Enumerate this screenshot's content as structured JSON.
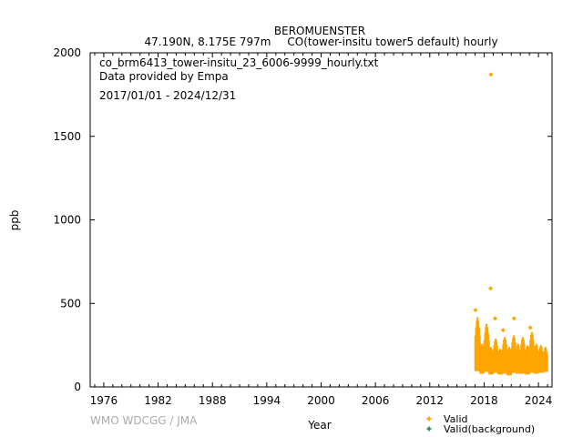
{
  "header": {
    "station": "BEROMUENSTER",
    "location": "47.190N, 8.175E 797m",
    "parameter": "CO(tower-insitu tower5 default) hourly"
  },
  "annotations": {
    "filename": "co_brm6413_tower-insitu_23_6006-9999_hourly.txt",
    "provider": "Data provided by Empa",
    "period": "2017/01/01 - 2024/12/31"
  },
  "watermark": "WMO WDCGG / JMA",
  "chart_data": {
    "type": "scatter",
    "title": "BEROMUENSTER",
    "xlabel": "Year",
    "ylabel": "ppb",
    "xlim": [
      1974.5,
      2025.5
    ],
    "ylim": [
      0,
      2000
    ],
    "x_ticks": [
      1976,
      1982,
      1988,
      1994,
      2000,
      2006,
      2012,
      2018,
      2024
    ],
    "y_ticks": [
      0,
      500,
      1000,
      1500,
      2000
    ],
    "grid": false,
    "legend_position": "bottom-right",
    "colors": {
      "valid": "#ffa500",
      "valid_background": "#2e8b57"
    },
    "series": [
      {
        "name": "Valid",
        "color": "#ffa500",
        "seasonal_bands": [
          {
            "x_start": 2017.0,
            "x_end": 2017.55,
            "y_low": 95,
            "y_high": 420
          },
          {
            "x_start": 2017.55,
            "x_end": 2018.0,
            "y_low": 80,
            "y_high": 260
          },
          {
            "x_start": 2018.0,
            "x_end": 2018.55,
            "y_low": 90,
            "y_high": 380
          },
          {
            "x_start": 2018.55,
            "x_end": 2019.0,
            "y_low": 75,
            "y_high": 240
          },
          {
            "x_start": 2019.0,
            "x_end": 2019.55,
            "y_low": 85,
            "y_high": 290
          },
          {
            "x_start": 2019.55,
            "x_end": 2020.0,
            "y_low": 75,
            "y_high": 230
          },
          {
            "x_start": 2020.0,
            "x_end": 2020.55,
            "y_low": 80,
            "y_high": 300
          },
          {
            "x_start": 2020.55,
            "x_end": 2021.0,
            "y_low": 70,
            "y_high": 240
          },
          {
            "x_start": 2021.0,
            "x_end": 2021.55,
            "y_low": 85,
            "y_high": 310
          },
          {
            "x_start": 2021.55,
            "x_end": 2022.0,
            "y_low": 80,
            "y_high": 260
          },
          {
            "x_start": 2022.0,
            "x_end": 2022.55,
            "y_low": 80,
            "y_high": 300
          },
          {
            "x_start": 2022.55,
            "x_end": 2023.0,
            "y_low": 75,
            "y_high": 250
          },
          {
            "x_start": 2023.0,
            "x_end": 2023.55,
            "y_low": 85,
            "y_high": 330
          },
          {
            "x_start": 2023.55,
            "x_end": 2024.0,
            "y_low": 80,
            "y_high": 260
          },
          {
            "x_start": 2024.0,
            "x_end": 2024.55,
            "y_low": 85,
            "y_high": 250
          },
          {
            "x_start": 2024.55,
            "x_end": 2025.0,
            "y_low": 90,
            "y_high": 240
          }
        ],
        "outliers": [
          {
            "x": 2018.75,
            "y": 1870
          },
          {
            "x": 2018.72,
            "y": 590
          },
          {
            "x": 2017.05,
            "y": 460
          },
          {
            "x": 2019.2,
            "y": 410
          },
          {
            "x": 2021.3,
            "y": 410
          },
          {
            "x": 2023.1,
            "y": 355
          },
          {
            "x": 2020.1,
            "y": 340
          }
        ]
      },
      {
        "name": "Valid(background)",
        "color": "#2e8b57",
        "points": []
      }
    ]
  }
}
